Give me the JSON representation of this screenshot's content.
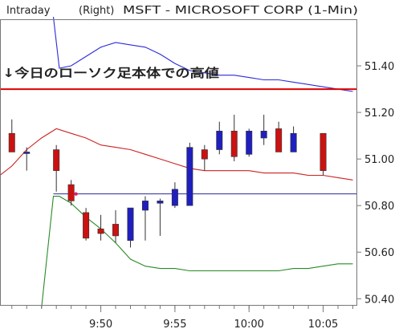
{
  "header": {
    "mode": "Intraday",
    "axis_side": "(Right)",
    "symbol_title": "MSFT  -  MICROSOFT CORP  (1-Min)"
  },
  "annotation": {
    "label": "↓今日のローソク足本体での高値",
    "level": 51.3
  },
  "colors": {
    "up": "#1f1fbf",
    "down": "#cc1111",
    "upper_band": "#2b2bd9",
    "mid_band": "#cc2222",
    "lower_band": "#2a8a2a",
    "hline": "#2a2a9a",
    "annotation": "#e00000",
    "frame": "#777777",
    "text": "#222222"
  },
  "chart_data": {
    "type": "candlestick",
    "title": "MSFT - MICROSOFT CORP (1-Min)",
    "y_axis_side": "right",
    "ylim": [
      50.37,
      51.6
    ],
    "y_ticks": [
      "50.40",
      "50.60",
      "50.80",
      "51.00",
      "51.20",
      "51.40"
    ],
    "x_ticks": [
      {
        "x": 4,
        "label": "9:50"
      },
      {
        "x": 9,
        "label": "9:55"
      },
      {
        "x": 14,
        "label": "10:00"
      },
      {
        "x": 19,
        "label": "10:05"
      }
    ],
    "x_range": [
      -2.8,
      21.3
    ],
    "grid": false,
    "reference_line": 50.85,
    "candles": [
      {
        "x": -2,
        "open": 51.11,
        "high": 51.17,
        "low": 51.03,
        "close": 51.03
      },
      {
        "x": -1,
        "open": 51.03,
        "high": 51.05,
        "low": 50.95,
        "close": 51.03
      },
      {
        "x": 1,
        "open": 51.04,
        "high": 51.06,
        "low": 50.86,
        "close": 50.95
      },
      {
        "x": 2,
        "open": 50.89,
        "high": 50.91,
        "low": 50.8,
        "close": 50.82
      },
      {
        "x": 3,
        "open": 50.77,
        "high": 50.79,
        "low": 50.65,
        "close": 50.66
      },
      {
        "x": 4,
        "open": 50.7,
        "high": 50.76,
        "low": 50.65,
        "close": 50.68
      },
      {
        "x": 5,
        "open": 50.72,
        "high": 50.78,
        "low": 50.64,
        "close": 50.67
      },
      {
        "x": 6,
        "open": 50.65,
        "high": 50.78,
        "low": 50.62,
        "close": 50.79
      },
      {
        "x": 7,
        "open": 50.78,
        "high": 50.84,
        "low": 50.65,
        "close": 50.82
      },
      {
        "x": 8,
        "open": 50.81,
        "high": 50.83,
        "low": 50.67,
        "close": 50.82
      },
      {
        "x": 9,
        "open": 50.8,
        "high": 50.9,
        "low": 50.79,
        "close": 50.87
      },
      {
        "x": 10,
        "open": 50.8,
        "high": 51.07,
        "low": 50.8,
        "close": 51.05
      },
      {
        "x": 11,
        "open": 51.04,
        "high": 51.06,
        "low": 50.95,
        "close": 51.0
      },
      {
        "x": 12,
        "open": 51.04,
        "high": 51.16,
        "low": 51.02,
        "close": 51.12
      },
      {
        "x": 13,
        "open": 51.12,
        "high": 51.19,
        "low": 50.99,
        "close": 51.01
      },
      {
        "x": 14,
        "open": 51.02,
        "high": 51.13,
        "low": 51.01,
        "close": 51.12
      },
      {
        "x": 15,
        "open": 51.09,
        "high": 51.19,
        "low": 51.06,
        "close": 51.12
      },
      {
        "x": 16,
        "open": 51.13,
        "high": 51.16,
        "low": 51.03,
        "close": 51.03
      },
      {
        "x": 17,
        "open": 51.03,
        "high": 51.14,
        "low": 51.03,
        "close": 51.11
      },
      {
        "x": 19,
        "open": 51.11,
        "high": 51.11,
        "low": 50.93,
        "close": 50.95
      }
    ],
    "series": [
      {
        "key": "upper_band",
        "points": [
          [
            0.8,
            51.61
          ],
          [
            1.2,
            51.39
          ],
          [
            2.0,
            51.4
          ],
          [
            3.0,
            51.44
          ],
          [
            4.0,
            51.48
          ],
          [
            5.0,
            51.5
          ],
          [
            6.0,
            51.49
          ],
          [
            7.0,
            51.48
          ],
          [
            8.0,
            51.45
          ],
          [
            9.0,
            51.41
          ],
          [
            10.0,
            51.38
          ],
          [
            11.0,
            51.37
          ],
          [
            12.0,
            51.36
          ],
          [
            13.0,
            51.36
          ],
          [
            14.0,
            51.35
          ],
          [
            15.0,
            51.34
          ],
          [
            16.0,
            51.34
          ],
          [
            17.0,
            51.33
          ],
          [
            18.0,
            51.32
          ],
          [
            19.0,
            51.31
          ],
          [
            20.0,
            51.3
          ],
          [
            21.0,
            51.29
          ]
        ]
      },
      {
        "key": "mid_band",
        "points": [
          [
            -2.8,
            50.93
          ],
          [
            -2.0,
            50.97
          ],
          [
            -1.0,
            51.04
          ],
          [
            0.0,
            51.09
          ],
          [
            1.0,
            51.13
          ],
          [
            2.0,
            51.11
          ],
          [
            3.0,
            51.09
          ],
          [
            4.0,
            51.06
          ],
          [
            5.0,
            51.05
          ],
          [
            6.0,
            51.04
          ],
          [
            7.0,
            51.02
          ],
          [
            8.0,
            51.0
          ],
          [
            9.0,
            50.98
          ],
          [
            10.0,
            50.96
          ],
          [
            11.0,
            50.95
          ],
          [
            12.0,
            50.95
          ],
          [
            13.0,
            50.95
          ],
          [
            14.0,
            50.95
          ],
          [
            15.0,
            50.94
          ],
          [
            16.0,
            50.94
          ],
          [
            17.0,
            50.94
          ],
          [
            18.0,
            50.93
          ],
          [
            19.0,
            50.93
          ],
          [
            20.0,
            50.92
          ],
          [
            21.0,
            50.91
          ]
        ]
      },
      {
        "key": "lower_band",
        "points": [
          [
            0.0,
            50.36
          ],
          [
            0.8,
            50.84
          ],
          [
            1.2,
            50.84
          ],
          [
            2.0,
            50.81
          ],
          [
            3.0,
            50.75
          ],
          [
            4.0,
            50.7
          ],
          [
            5.0,
            50.64
          ],
          [
            6.0,
            50.57
          ],
          [
            7.0,
            50.54
          ],
          [
            8.0,
            50.53
          ],
          [
            9.0,
            50.53
          ],
          [
            10.0,
            50.52
          ],
          [
            11.0,
            50.52
          ],
          [
            12.0,
            50.52
          ],
          [
            13.0,
            50.52
          ],
          [
            14.0,
            50.52
          ],
          [
            15.0,
            50.52
          ],
          [
            16.0,
            50.52
          ],
          [
            17.0,
            50.53
          ],
          [
            18.0,
            50.53
          ],
          [
            19.0,
            50.54
          ],
          [
            20.0,
            50.55
          ],
          [
            21.0,
            50.55
          ]
        ]
      }
    ]
  }
}
